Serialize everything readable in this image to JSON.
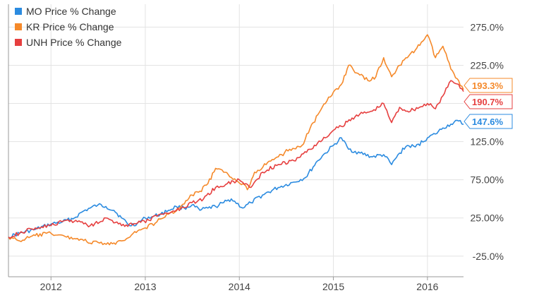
{
  "chart_data": {
    "type": "line",
    "x_axis": {
      "type": "date",
      "range": [
        "2011-07-20",
        "2016-05-20"
      ],
      "tick_labels": [
        {
          "date": "2012-01-01",
          "label": "2012"
        },
        {
          "date": "2013-01-01",
          "label": "2013"
        },
        {
          "date": "2014-01-01",
          "label": "2014"
        },
        {
          "date": "2015-01-01",
          "label": "2015"
        },
        {
          "date": "2016-01-01",
          "label": "2016"
        }
      ]
    },
    "y_axis": {
      "range": [
        -52,
        305
      ],
      "tick_labels": [
        {
          "value": 275,
          "label": "275.0%"
        },
        {
          "value": 225,
          "label": "225.0%"
        },
        {
          "value": 125,
          "label": "125.0%"
        },
        {
          "value": 75,
          "label": "75.00%"
        },
        {
          "value": 25,
          "label": "25.00%"
        },
        {
          "value": -25,
          "label": "-25.0%"
        }
      ],
      "gridlines": [
        275,
        225,
        175,
        125,
        75,
        25,
        -25
      ]
    },
    "grid": {
      "horizontal": true,
      "vertical": true
    },
    "legend": {
      "placement": "top-left"
    },
    "series": [
      {
        "name": "MO Price % Change",
        "color": "#2b8be0",
        "end_label": "147.6%",
        "points": [
          [
            "2011-07-20",
            0
          ],
          [
            "2011-09-01",
            5
          ],
          [
            "2011-11-01",
            10
          ],
          [
            "2012-01-01",
            17
          ],
          [
            "2012-02-15",
            20
          ],
          [
            "2012-04-01",
            25
          ],
          [
            "2012-05-01",
            33
          ],
          [
            "2012-06-01",
            38
          ],
          [
            "2012-07-01",
            42
          ],
          [
            "2012-08-01",
            40
          ],
          [
            "2012-09-01",
            35
          ],
          [
            "2012-10-01",
            25
          ],
          [
            "2012-11-01",
            15
          ],
          [
            "2012-12-01",
            18
          ],
          [
            "2013-01-01",
            25
          ],
          [
            "2013-02-01",
            27
          ],
          [
            "2013-03-01",
            30
          ],
          [
            "2013-04-01",
            35
          ],
          [
            "2013-05-01",
            40
          ],
          [
            "2013-06-01",
            38
          ],
          [
            "2013-07-01",
            42
          ],
          [
            "2013-08-01",
            35
          ],
          [
            "2013-09-01",
            38
          ],
          [
            "2013-10-01",
            40
          ],
          [
            "2013-11-01",
            45
          ],
          [
            "2013-12-01",
            50
          ],
          [
            "2014-01-15",
            38
          ],
          [
            "2014-02-15",
            45
          ],
          [
            "2014-04-01",
            55
          ],
          [
            "2014-06-01",
            65
          ],
          [
            "2014-08-01",
            72
          ],
          [
            "2014-09-15",
            78
          ],
          [
            "2014-11-01",
            100
          ],
          [
            "2014-12-01",
            110
          ],
          [
            "2015-01-01",
            120
          ],
          [
            "2015-02-01",
            130
          ],
          [
            "2015-03-01",
            115
          ],
          [
            "2015-04-15",
            110
          ],
          [
            "2015-06-01",
            105
          ],
          [
            "2015-07-15",
            108
          ],
          [
            "2015-08-15",
            95
          ],
          [
            "2015-09-15",
            110
          ],
          [
            "2015-10-15",
            120
          ],
          [
            "2015-11-15",
            118
          ],
          [
            "2016-01-01",
            130
          ],
          [
            "2016-02-01",
            135
          ],
          [
            "2016-03-01",
            143
          ],
          [
            "2016-04-01",
            148
          ],
          [
            "2016-05-01",
            152
          ],
          [
            "2016-05-20",
            147.6
          ]
        ]
      },
      {
        "name": "KR Price % Change",
        "color": "#f5892a",
        "end_label": "193.3%",
        "points": [
          [
            "2011-07-20",
            0
          ],
          [
            "2011-09-01",
            -5
          ],
          [
            "2011-11-01",
            2
          ],
          [
            "2012-01-01",
            5
          ],
          [
            "2012-03-01",
            0
          ],
          [
            "2012-05-01",
            -3
          ],
          [
            "2012-06-01",
            -8
          ],
          [
            "2012-07-01",
            -7
          ],
          [
            "2012-08-15",
            -10
          ],
          [
            "2012-10-01",
            -5
          ],
          [
            "2012-11-15",
            5
          ],
          [
            "2013-01-01",
            12
          ],
          [
            "2013-02-15",
            20
          ],
          [
            "2013-04-01",
            30
          ],
          [
            "2013-05-15",
            38
          ],
          [
            "2013-07-01",
            55
          ],
          [
            "2013-08-01",
            60
          ],
          [
            "2013-09-01",
            70
          ],
          [
            "2013-10-01",
            90
          ],
          [
            "2013-11-01",
            85
          ],
          [
            "2013-12-01",
            78
          ],
          [
            "2014-01-15",
            70
          ],
          [
            "2014-02-01",
            62
          ],
          [
            "2014-03-01",
            85
          ],
          [
            "2014-04-15",
            95
          ],
          [
            "2014-06-01",
            105
          ],
          [
            "2014-07-15",
            115
          ],
          [
            "2014-09-01",
            120
          ],
          [
            "2014-10-15",
            150
          ],
          [
            "2014-12-01",
            175
          ],
          [
            "2015-01-01",
            190
          ],
          [
            "2015-02-01",
            200
          ],
          [
            "2015-03-01",
            225
          ],
          [
            "2015-04-01",
            215
          ],
          [
            "2015-05-15",
            205
          ],
          [
            "2015-06-15",
            210
          ],
          [
            "2015-07-15",
            235
          ],
          [
            "2015-08-15",
            210
          ],
          [
            "2015-09-15",
            225
          ],
          [
            "2015-10-15",
            235
          ],
          [
            "2015-11-15",
            245
          ],
          [
            "2016-01-01",
            265
          ],
          [
            "2016-02-01",
            235
          ],
          [
            "2016-03-01",
            250
          ],
          [
            "2016-04-01",
            220
          ],
          [
            "2016-05-01",
            205
          ],
          [
            "2016-05-20",
            193.3
          ]
        ]
      },
      {
        "name": "UNH Price % Change",
        "color": "#e63f3f",
        "end_label": "190.7%",
        "points": [
          [
            "2011-07-20",
            0
          ],
          [
            "2011-09-01",
            5
          ],
          [
            "2011-11-01",
            12
          ],
          [
            "2012-01-01",
            15
          ],
          [
            "2012-03-01",
            22
          ],
          [
            "2012-05-01",
            20
          ],
          [
            "2012-06-01",
            15
          ],
          [
            "2012-08-01",
            25
          ],
          [
            "2012-10-01",
            15
          ],
          [
            "2012-12-01",
            18
          ],
          [
            "2013-01-15",
            22
          ],
          [
            "2013-03-01",
            30
          ],
          [
            "2013-05-01",
            35
          ],
          [
            "2013-07-01",
            45
          ],
          [
            "2013-08-15",
            50
          ],
          [
            "2013-10-01",
            65
          ],
          [
            "2013-11-15",
            70
          ],
          [
            "2014-01-01",
            75
          ],
          [
            "2014-02-15",
            65
          ],
          [
            "2014-04-01",
            85
          ],
          [
            "2014-06-01",
            95
          ],
          [
            "2014-08-01",
            100
          ],
          [
            "2014-10-01",
            115
          ],
          [
            "2014-12-01",
            130
          ],
          [
            "2015-01-01",
            140
          ],
          [
            "2015-02-01",
            145
          ],
          [
            "2015-04-01",
            160
          ],
          [
            "2015-06-01",
            165
          ],
          [
            "2015-07-15",
            175
          ],
          [
            "2015-08-15",
            150
          ],
          [
            "2015-09-15",
            170
          ],
          [
            "2015-10-15",
            165
          ],
          [
            "2015-12-01",
            170
          ],
          [
            "2016-01-01",
            175
          ],
          [
            "2016-02-01",
            168
          ],
          [
            "2016-03-01",
            185
          ],
          [
            "2016-04-01",
            205
          ],
          [
            "2016-05-01",
            200
          ],
          [
            "2016-05-20",
            190.7
          ]
        ]
      }
    ]
  }
}
